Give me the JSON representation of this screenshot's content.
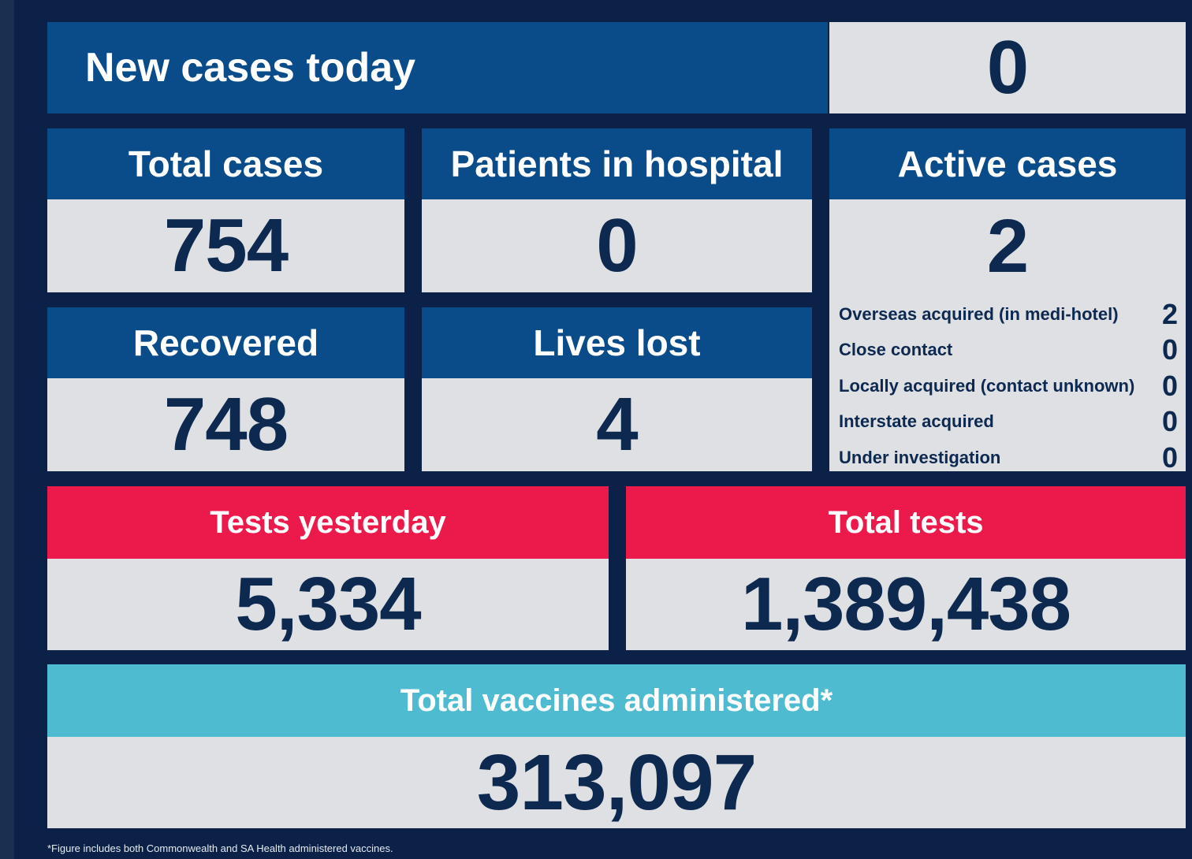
{
  "new_cases_today": {
    "label": "New cases today",
    "value": "0"
  },
  "total_cases": {
    "label": "Total cases",
    "value": "754"
  },
  "patients_in_hospital": {
    "label": "Patients in hospital",
    "value": "0"
  },
  "active_cases": {
    "label": "Active cases",
    "value": "2",
    "breakdown": [
      {
        "label": "Overseas acquired (in medi-hotel)",
        "value": "2"
      },
      {
        "label": "Close contact",
        "value": "0"
      },
      {
        "label": "Locally acquired (contact unknown)",
        "value": "0"
      },
      {
        "label": "Interstate acquired",
        "value": "0"
      },
      {
        "label": "Under investigation",
        "value": "0"
      }
    ]
  },
  "recovered": {
    "label": "Recovered",
    "value": "748"
  },
  "lives_lost": {
    "label": "Lives lost",
    "value": "4"
  },
  "tests_yesterday": {
    "label": "Tests yesterday",
    "value": "5,334"
  },
  "total_tests": {
    "label": "Total tests",
    "value": "1,389,438"
  },
  "total_vaccines": {
    "label": "Total vaccines administered*",
    "value": "313,097"
  },
  "footnote": "*Figure includes both Commonwealth and SA Health administered vaccines.",
  "colors": {
    "background": "#0b2147",
    "header_blue": "#0a4b8a",
    "header_red": "#ec1a4b",
    "header_teal": "#4ebbd0",
    "value_panel": "#dfe0e4",
    "value_text": "#0d2950"
  }
}
